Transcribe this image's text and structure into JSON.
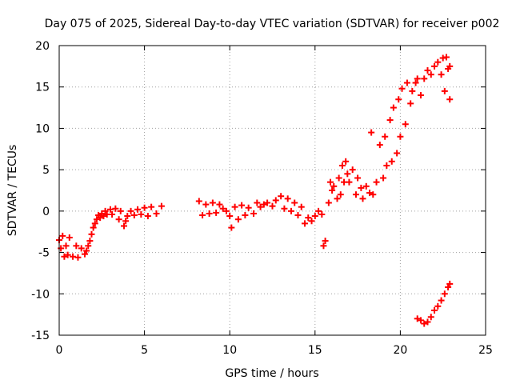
{
  "chart_data": {
    "type": "scatter",
    "title": "Day 075 of 2025, Sidereal Day-to-day VTEC variation (SDTVAR) for receiver p002",
    "xlabel": "GPS time / hours",
    "ylabel": "SDTVAR / TECUs",
    "xlim": [
      0,
      25
    ],
    "ylim": [
      -15,
      20
    ],
    "xticks": [
      "0",
      "5",
      "10",
      "15",
      "20",
      "25"
    ],
    "yticks": [
      "-15",
      "-10",
      "-5",
      "0",
      "5",
      "10",
      "15",
      "20"
    ],
    "grid": true,
    "marker": "+",
    "colors": {
      "series": "#ff0000",
      "grid": "#a0a0a0",
      "axis": "#000000"
    },
    "series": [
      {
        "name": "SDTVAR",
        "points": [
          [
            0.0,
            -3.5
          ],
          [
            0.1,
            -4.5
          ],
          [
            0.2,
            -3.0
          ],
          [
            0.3,
            -5.5
          ],
          [
            0.4,
            -4.2
          ],
          [
            0.5,
            -5.3
          ],
          [
            0.6,
            -3.2
          ],
          [
            0.8,
            -5.5
          ],
          [
            1.0,
            -4.2
          ],
          [
            1.1,
            -5.6
          ],
          [
            1.3,
            -4.5
          ],
          [
            1.5,
            -5.2
          ],
          [
            1.6,
            -4.8
          ],
          [
            1.7,
            -4.2
          ],
          [
            1.8,
            -3.6
          ],
          [
            1.9,
            -2.8
          ],
          [
            2.0,
            -2.0
          ],
          [
            2.1,
            -1.5
          ],
          [
            2.2,
            -1.0
          ],
          [
            2.3,
            -0.5
          ],
          [
            2.4,
            -0.8
          ],
          [
            2.5,
            -0.3
          ],
          [
            2.6,
            -0.6
          ],
          [
            2.7,
            0.0
          ],
          [
            2.8,
            -0.4
          ],
          [
            3.0,
            0.2
          ],
          [
            3.1,
            -0.4
          ],
          [
            3.3,
            0.3
          ],
          [
            3.5,
            -1.0
          ],
          [
            3.6,
            0.0
          ],
          [
            3.8,
            -1.8
          ],
          [
            3.9,
            -1.2
          ],
          [
            4.0,
            -0.6
          ],
          [
            4.2,
            0.0
          ],
          [
            4.4,
            -0.5
          ],
          [
            4.6,
            0.2
          ],
          [
            4.8,
            -0.4
          ],
          [
            5.0,
            0.4
          ],
          [
            5.2,
            -0.6
          ],
          [
            5.4,
            0.5
          ],
          [
            5.7,
            -0.3
          ],
          [
            6.0,
            0.6
          ],
          [
            8.2,
            1.2
          ],
          [
            8.4,
            -0.5
          ],
          [
            8.6,
            0.8
          ],
          [
            8.8,
            -0.3
          ],
          [
            9.0,
            1.0
          ],
          [
            9.2,
            -0.2
          ],
          [
            9.4,
            0.8
          ],
          [
            9.6,
            0.3
          ],
          [
            9.8,
            0.0
          ],
          [
            10.0,
            -0.6
          ],
          [
            10.1,
            -2.0
          ],
          [
            10.3,
            0.5
          ],
          [
            10.5,
            -1.0
          ],
          [
            10.7,
            0.7
          ],
          [
            10.9,
            -0.5
          ],
          [
            11.1,
            0.4
          ],
          [
            11.4,
            -0.3
          ],
          [
            11.6,
            1.0
          ],
          [
            11.8,
            0.5
          ],
          [
            12.0,
            0.8
          ],
          [
            12.2,
            1.0
          ],
          [
            12.5,
            0.6
          ],
          [
            12.7,
            1.3
          ],
          [
            13.0,
            1.8
          ],
          [
            13.2,
            0.3
          ],
          [
            13.4,
            1.5
          ],
          [
            13.6,
            0.0
          ],
          [
            13.8,
            1.0
          ],
          [
            14.0,
            -0.5
          ],
          [
            14.2,
            0.5
          ],
          [
            14.4,
            -1.5
          ],
          [
            14.6,
            -0.8
          ],
          [
            14.8,
            -1.2
          ],
          [
            15.0,
            -0.6
          ],
          [
            15.2,
            0.0
          ],
          [
            15.4,
            -0.4
          ],
          [
            15.5,
            -4.2
          ],
          [
            15.6,
            -3.6
          ],
          [
            15.8,
            1.0
          ],
          [
            15.9,
            3.5
          ],
          [
            16.0,
            2.5
          ],
          [
            16.1,
            3.0
          ],
          [
            16.3,
            1.5
          ],
          [
            16.4,
            4.0
          ],
          [
            16.5,
            2.0
          ],
          [
            16.6,
            5.5
          ],
          [
            16.7,
            3.5
          ],
          [
            16.8,
            6.0
          ],
          [
            16.9,
            4.5
          ],
          [
            17.0,
            3.5
          ],
          [
            17.2,
            5.0
          ],
          [
            17.4,
            2.0
          ],
          [
            17.5,
            4.0
          ],
          [
            17.7,
            2.8
          ],
          [
            17.8,
            1.5
          ],
          [
            18.0,
            3.0
          ],
          [
            18.2,
            2.2
          ],
          [
            18.3,
            9.5
          ],
          [
            18.4,
            2.0
          ],
          [
            18.6,
            3.5
          ],
          [
            18.8,
            8.0
          ],
          [
            19.0,
            4.0
          ],
          [
            19.1,
            9.0
          ],
          [
            19.2,
            5.5
          ],
          [
            19.4,
            11.0
          ],
          [
            19.5,
            6.0
          ],
          [
            19.6,
            12.5
          ],
          [
            19.8,
            7.0
          ],
          [
            19.9,
            13.5
          ],
          [
            20.0,
            9.0
          ],
          [
            20.1,
            14.8
          ],
          [
            20.3,
            10.5
          ],
          [
            20.4,
            15.5
          ],
          [
            20.6,
            13.0
          ],
          [
            20.7,
            14.5
          ],
          [
            20.9,
            15.5
          ],
          [
            21.0,
            16.0
          ],
          [
            21.2,
            14.0
          ],
          [
            21.4,
            16.0
          ],
          [
            21.6,
            17.0
          ],
          [
            21.8,
            16.5
          ],
          [
            22.0,
            17.5
          ],
          [
            22.2,
            18.0
          ],
          [
            22.4,
            16.5
          ],
          [
            22.5,
            18.5
          ],
          [
            22.6,
            14.5
          ],
          [
            22.7,
            18.6
          ],
          [
            22.8,
            17.2
          ],
          [
            22.9,
            13.5
          ],
          [
            22.9,
            17.5
          ],
          [
            21.0,
            -13.0
          ],
          [
            21.2,
            -13.2
          ],
          [
            21.4,
            -13.6
          ],
          [
            21.6,
            -13.4
          ],
          [
            21.8,
            -12.8
          ],
          [
            22.0,
            -12.0
          ],
          [
            22.2,
            -11.5
          ],
          [
            22.4,
            -10.8
          ],
          [
            22.6,
            -10.0
          ],
          [
            22.8,
            -9.2
          ],
          [
            22.9,
            -8.8
          ]
        ]
      }
    ]
  }
}
